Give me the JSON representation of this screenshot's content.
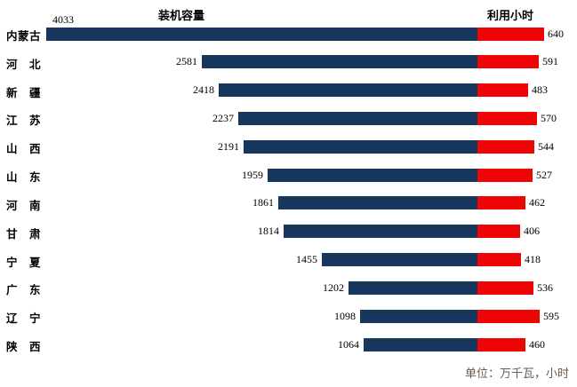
{
  "chart_data": {
    "type": "bar",
    "variant": "dual-direction-horizontal",
    "title_left": "装机容量",
    "title_right": "利用小时",
    "unit_note": "单位：万千瓦，小时",
    "categories": [
      "内蒙古",
      "河　北",
      "新　疆",
      "江　苏",
      "山　西",
      "山　东",
      "河　南",
      "甘　肃",
      "宁　夏",
      "广　东",
      "辽　宁",
      "陕　西"
    ],
    "series": [
      {
        "name": "装机容量",
        "color": "#17375E",
        "values": [
          4033,
          2581,
          2418,
          2237,
          2191,
          1959,
          1861,
          1814,
          1455,
          1202,
          1098,
          1064
        ]
      },
      {
        "name": "利用小时",
        "color": "#EE0505",
        "values": [
          640,
          591,
          483,
          570,
          544,
          527,
          462,
          406,
          418,
          536,
          595,
          460
        ]
      }
    ],
    "left_axis_max": 4033,
    "right_axis_max": 640,
    "grid": "off",
    "legend_position": "titles-above-columns",
    "background_color": "#FFFFFF",
    "label_color": "#000000",
    "unit_note_color": "#6B5A4F"
  }
}
